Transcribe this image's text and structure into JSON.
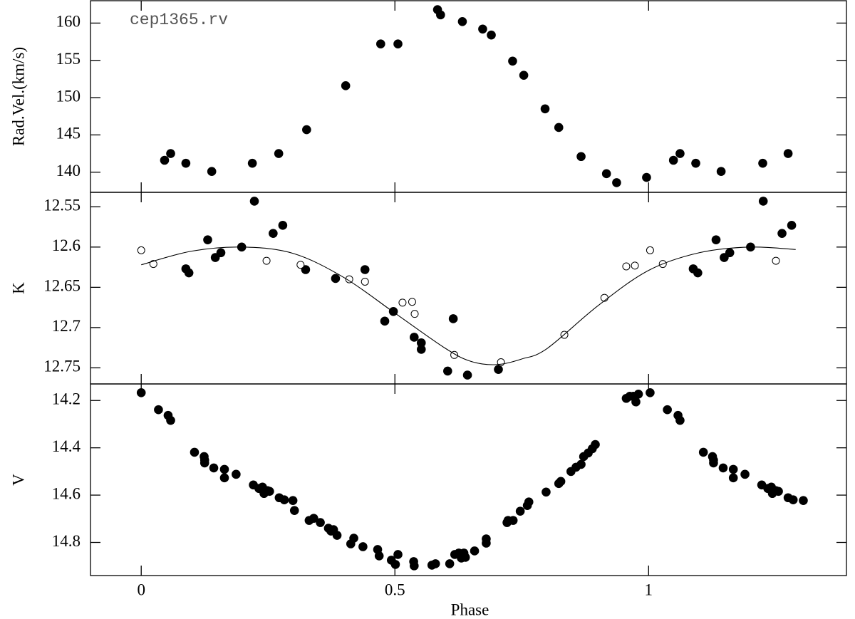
{
  "chart_data": [
    {
      "type": "scatter",
      "annotation": "cep1365.rv",
      "ylabel": "Rad.Vel.(km/s)",
      "xlim": [
        -0.1,
        1.39
      ],
      "xticks": [
        0,
        0.5,
        1
      ],
      "ylim": [
        137.3,
        163
      ],
      "yticks": [
        140,
        145,
        150,
        155,
        160
      ],
      "series": [
        {
          "style": "filled",
          "color": "#000000",
          "x": [
            0.046,
            0.058,
            0.088,
            0.139,
            0.219,
            0.271,
            0.326,
            0.403,
            0.472,
            0.506,
            0.584,
            0.59,
            0.633,
            0.673,
            0.69,
            0.732,
            0.754,
            0.796,
            0.823,
            0.867,
            0.917,
            0.937,
            0.996,
            1.049,
            1.062,
            1.093,
            1.143,
            1.225,
            1.275
          ],
          "values": [
            141.6,
            142.5,
            141.2,
            140.1,
            141.2,
            142.5,
            145.7,
            151.6,
            157.2,
            157.2,
            161.8,
            161.1,
            160.2,
            159.2,
            158.4,
            154.9,
            153.0,
            148.5,
            146.0,
            142.1,
            139.8,
            138.6,
            139.3,
            141.6,
            142.5,
            141.2,
            140.1,
            141.2,
            142.5
          ]
        }
      ]
    },
    {
      "type": "scatter",
      "ylabel": "K",
      "xlim": [
        -0.1,
        1.39
      ],
      "xticks": [
        0,
        0.5,
        1
      ],
      "ylim": [
        12.77,
        12.532
      ],
      "yticks": [
        12.55,
        12.6,
        12.65,
        12.7,
        12.75
      ],
      "series": [
        {
          "style": "filled",
          "color": "#000000",
          "x": [
            0.088,
            0.094,
            0.131,
            0.146,
            0.157,
            0.198,
            0.223,
            0.26,
            0.279,
            0.324,
            0.383,
            0.441,
            0.48,
            0.497,
            0.538,
            0.552,
            0.552,
            0.604,
            0.615,
            0.643,
            0.704,
            1.088,
            1.097,
            1.133,
            1.149,
            1.16,
            1.201,
            1.226,
            1.263,
            1.282
          ],
          "values": [
            12.627,
            12.632,
            12.591,
            12.613,
            12.607,
            12.6,
            12.543,
            12.583,
            12.573,
            12.628,
            12.639,
            12.628,
            12.692,
            12.68,
            12.712,
            12.719,
            12.727,
            12.754,
            12.689,
            12.759,
            12.752,
            12.627,
            12.632,
            12.591,
            12.613,
            12.607,
            12.6,
            12.543,
            12.583,
            12.573
          ]
        },
        {
          "style": "open",
          "color": "#000000",
          "x": [
            0.0,
            0.024,
            0.247,
            0.314,
            0.41,
            0.441,
            0.515,
            0.534,
            0.539,
            0.617,
            0.709,
            0.834,
            0.913,
            0.956,
            0.973,
            1.003,
            1.028,
            1.251
          ],
          "values": [
            12.604,
            12.621,
            12.617,
            12.622,
            12.64,
            12.643,
            12.669,
            12.668,
            12.683,
            12.734,
            12.743,
            12.709,
            12.663,
            12.624,
            12.623,
            12.604,
            12.621,
            12.617
          ]
        },
        {
          "style": "line",
          "color": "#000000",
          "x": [
            0,
            0.1,
            0.2,
            0.3,
            0.4,
            0.5,
            0.6,
            0.65,
            0.7,
            0.75,
            0.8,
            0.9,
            1.0,
            1.1,
            1.2,
            1.29
          ],
          "values": [
            12.622,
            12.605,
            12.6,
            12.608,
            12.638,
            12.682,
            12.726,
            12.742,
            12.746,
            12.739,
            12.726,
            12.673,
            12.629,
            12.607,
            12.6,
            12.603
          ]
        }
      ]
    },
    {
      "type": "scatter",
      "ylabel": "V",
      "xlabel": "Phase",
      "xlim": [
        -0.1,
        1.39
      ],
      "xticks": [
        0,
        0.5,
        1
      ],
      "ylim": [
        14.94,
        14.13
      ],
      "yticks": [
        14.2,
        14.4,
        14.6,
        14.8
      ],
      "series": [
        {
          "style": "filled",
          "color": "#000000",
          "x": [
            0.0,
            0.034,
            0.053,
            0.058,
            0.105,
            0.124,
            0.125,
            0.125,
            0.143,
            0.164,
            0.164,
            0.187,
            0.221,
            0.232,
            0.239,
            0.242,
            0.249,
            0.253,
            0.272,
            0.282,
            0.299,
            0.302,
            0.331,
            0.34,
            0.353,
            0.369,
            0.374,
            0.379,
            0.386,
            0.413,
            0.419,
            0.437,
            0.466,
            0.469,
            0.493,
            0.501,
            0.506,
            0.537,
            0.538,
            0.573,
            0.58,
            0.608,
            0.618,
            0.626,
            0.631,
            0.636,
            0.639,
            0.657,
            0.68,
            0.68,
            0.721,
            0.723,
            0.733,
            0.747,
            0.761,
            0.764,
            0.798,
            0.823,
            0.827,
            0.847,
            0.857,
            0.867,
            0.872,
            0.881,
            0.889,
            0.895,
            0.956,
            0.963,
            0.97,
            0.975,
            0.98,
            1.003,
            1.037,
            1.058,
            1.062,
            1.108,
            1.126,
            1.128,
            1.128,
            1.147,
            1.167,
            1.167,
            1.19,
            1.223,
            1.235,
            1.242,
            1.244,
            1.251,
            1.256,
            1.275,
            1.285,
            1.305
          ],
          "values": [
            14.167,
            14.239,
            14.263,
            14.284,
            14.419,
            14.437,
            14.452,
            14.464,
            14.485,
            14.491,
            14.527,
            14.512,
            14.557,
            14.572,
            14.566,
            14.593,
            14.581,
            14.584,
            14.611,
            14.62,
            14.623,
            14.665,
            14.707,
            14.698,
            14.716,
            14.74,
            14.752,
            14.746,
            14.77,
            14.806,
            14.782,
            14.818,
            14.83,
            14.857,
            14.875,
            14.893,
            14.851,
            14.881,
            14.899,
            14.896,
            14.89,
            14.89,
            14.851,
            14.845,
            14.866,
            14.845,
            14.863,
            14.836,
            14.785,
            14.803,
            14.716,
            14.707,
            14.707,
            14.668,
            14.644,
            14.629,
            14.587,
            14.551,
            14.542,
            14.5,
            14.482,
            14.47,
            14.437,
            14.422,
            14.404,
            14.386,
            14.191,
            14.182,
            14.182,
            14.206,
            14.173,
            14.167,
            14.239,
            14.263,
            14.284,
            14.419,
            14.437,
            14.452,
            14.464,
            14.485,
            14.491,
            14.527,
            14.512,
            14.557,
            14.572,
            14.566,
            14.593,
            14.581,
            14.584,
            14.611,
            14.62,
            14.623
          ]
        }
      ]
    }
  ]
}
